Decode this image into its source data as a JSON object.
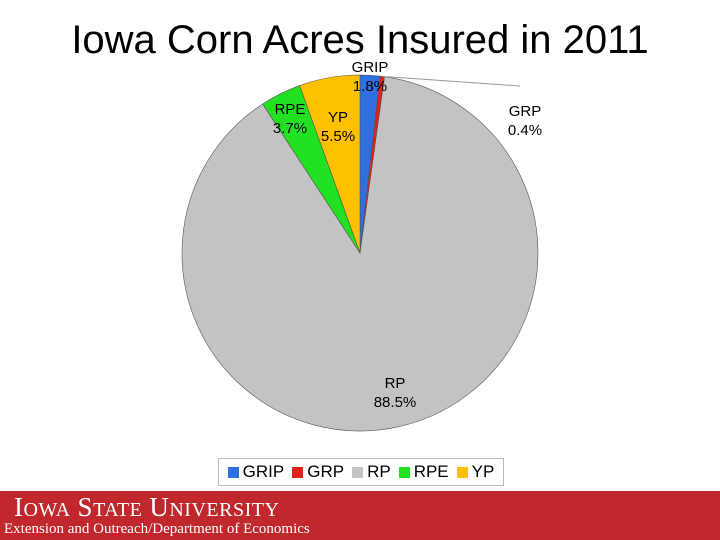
{
  "title": "Iowa Corn Acres Insured in 2011",
  "chart_data": {
    "type": "pie",
    "title": "Iowa Corn Acres Insured in 2011",
    "slices": [
      {
        "name": "GRIP",
        "value": 1.8,
        "label": "1.8%",
        "color": "#2f6fe0"
      },
      {
        "name": "GRP",
        "value": 0.4,
        "label": "0.4%",
        "color": "#e0211b"
      },
      {
        "name": "RP",
        "value": 88.5,
        "label": "88.5%",
        "color": "#c3c3c3"
      },
      {
        "name": "RPE",
        "value": 3.7,
        "label": "3.7%",
        "color": "#22e022"
      },
      {
        "name": "YP",
        "value": 5.5,
        "label": "5.5%",
        "color": "#ffc000"
      }
    ],
    "legend": [
      "GRIP",
      "GRP",
      "RP",
      "RPE",
      "YP"
    ],
    "legend_position": "bottom"
  },
  "footer": {
    "university_name": "Iowa State University",
    "department": "Extension and Outreach/Department of Economics",
    "color": "#c0282d"
  }
}
